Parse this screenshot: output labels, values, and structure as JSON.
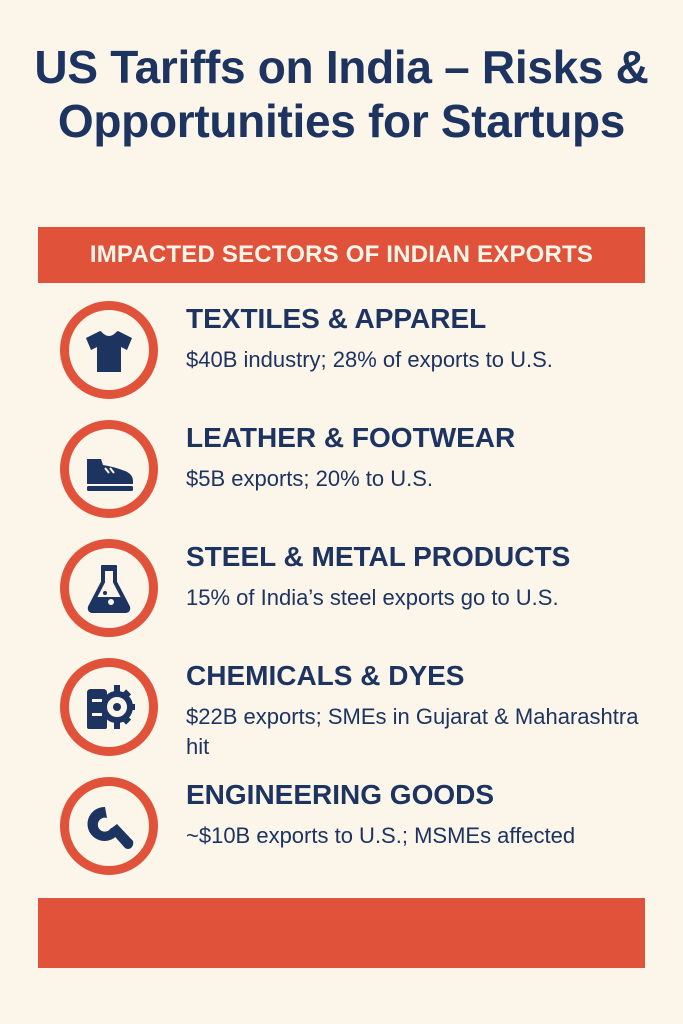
{
  "title": "US Tariffs on India – Risks & Opportunities for Startups",
  "banner": "IMPACTED SECTORS OF INDIAN EXPORTS",
  "colors": {
    "navy": "#1d3461",
    "accent": "#e0533a",
    "background": "#fbf5ea"
  },
  "sectors": [
    {
      "icon": "tshirt-icon",
      "name": "TEXTILES & APPAREL",
      "desc": "$40B industry; 28% of exports to U.S."
    },
    {
      "icon": "shoe-icon",
      "name": "LEATHER & FOOTWEAR",
      "desc": "$5B exports; 20% to U.S."
    },
    {
      "icon": "flask-icon",
      "name": "STEEL & METAL PRODUCTS",
      "desc": "15% of India’s steel exports go to U.S."
    },
    {
      "icon": "gear-icon",
      "name": "CHEMICALS & DYES",
      "desc": "$22B exports; SMEs in Gujarat & Maharashtra hit"
    },
    {
      "icon": "wrench-icon",
      "name": "ENGINEERING GOODS",
      "desc": "~$10B exports to U.S.; MSMEs affected"
    }
  ]
}
